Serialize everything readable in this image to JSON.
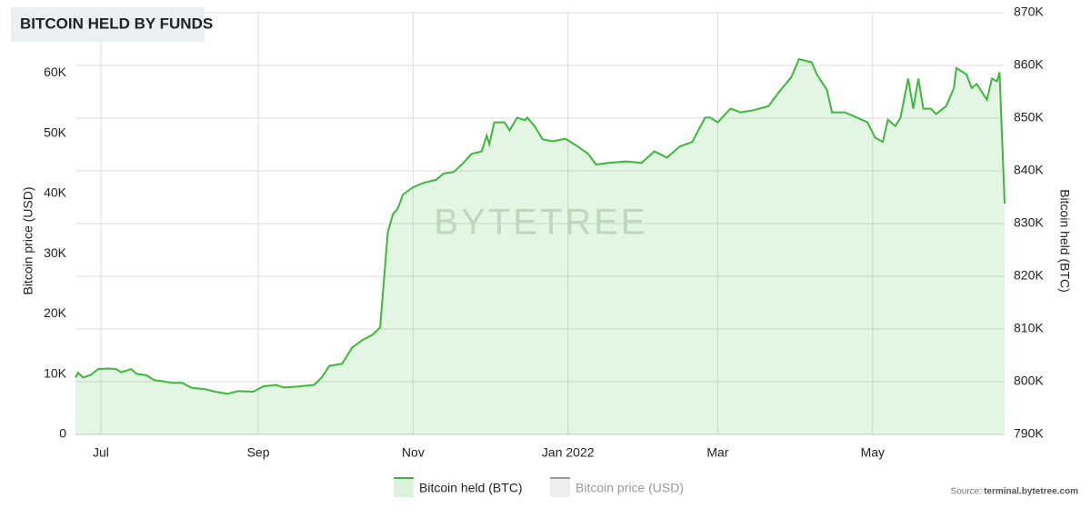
{
  "chart_data": {
    "type": "line",
    "title": "BITCOIN HELD BY FUNDS",
    "watermark": "BYTETREE",
    "source_label": "Source:",
    "source": "terminal.bytetree.com",
    "ylabel": "Bitcoin price (USD)",
    "y2label": "Bitcoin held (BTC)",
    "x": [
      -10,
      -9,
      -7,
      -4,
      -1,
      3,
      6,
      8,
      12,
      14,
      18,
      21,
      24,
      28,
      32,
      36,
      41,
      45,
      50,
      54,
      60,
      64,
      69,
      72,
      78,
      84,
      87,
      90,
      95,
      99,
      103,
      107,
      110,
      113,
      115,
      117,
      119,
      123,
      127,
      132,
      135,
      139,
      143,
      146,
      150,
      152,
      153,
      155,
      159,
      161,
      164,
      167,
      168,
      171,
      174,
      178,
      183,
      187,
      192,
      195,
      200,
      207,
      213,
      218,
      223,
      228,
      233,
      238,
      240,
      243,
      248,
      252,
      257,
      263,
      267,
      272,
      275,
      280,
      282,
      286,
      288,
      293,
      297,
      302,
      305,
      308,
      310,
      313,
      315,
      318,
      320,
      322,
      324,
      327,
      329,
      333,
      336,
      337,
      341,
      343,
      345,
      349,
      351,
      353,
      354,
      356
    ],
    "xlim": [
      -10,
      356
    ],
    "xticks": [
      {
        "value": 0,
        "label": "Jul"
      },
      {
        "value": 62,
        "label": "Sep"
      },
      {
        "value": 123,
        "label": "Nov"
      },
      {
        "value": 184,
        "label": "Jan 2022"
      },
      {
        "value": 243,
        "label": "Mar"
      },
      {
        "value": 304,
        "label": "May"
      }
    ],
    "ylim": [
      0,
      70000
    ],
    "yticks": [
      0,
      {
        "value": 10000,
        "label": "10K"
      },
      {
        "value": 20000,
        "label": "20K"
      },
      {
        "value": 30000,
        "label": "30K"
      },
      {
        "value": 40000,
        "label": "40K"
      },
      {
        "value": 50000,
        "label": "50K"
      },
      {
        "value": 60000,
        "label": "60K"
      }
    ],
    "y2lim": [
      790000,
      870000
    ],
    "y2ticks": [
      {
        "value": 790000,
        "label": "790K"
      },
      {
        "value": 800000,
        "label": "800K"
      },
      {
        "value": 810000,
        "label": "810K"
      },
      {
        "value": 820000,
        "label": "820K"
      },
      {
        "value": 830000,
        "label": "830K"
      },
      {
        "value": 840000,
        "label": "840K"
      },
      {
        "value": 850000,
        "label": "850K"
      },
      {
        "value": 860000,
        "label": "860K"
      },
      {
        "value": 870000,
        "label": "870K"
      }
    ],
    "grid": true,
    "legend": "bottom",
    "series": [
      {
        "name": "Bitcoin held (BTC)",
        "color": "#3cb83c",
        "axis": "y2",
        "visible": true,
        "values": [
          800800,
          801700,
          800800,
          801300,
          802400,
          802500,
          802400,
          801800,
          802400,
          801500,
          801200,
          800300,
          800100,
          799800,
          799800,
          798800,
          798600,
          798100,
          797700,
          798200,
          798100,
          799100,
          799400,
          798900,
          799100,
          799400,
          800800,
          803000,
          803400,
          806500,
          807900,
          808900,
          810300,
          828300,
          831700,
          832900,
          835500,
          836900,
          837700,
          838300,
          839500,
          839800,
          841600,
          843200,
          843700,
          846700,
          845100,
          849200,
          849200,
          847700,
          850100,
          849600,
          850100,
          848400,
          846000,
          845600,
          846100,
          844900,
          843200,
          841200,
          841500,
          841800,
          841500,
          843700,
          842500,
          844600,
          845500,
          850100,
          850100,
          849200,
          851800,
          851100,
          851500,
          852300,
          854900,
          857800,
          861200,
          860600,
          858300,
          855400,
          851100,
          851100,
          850300,
          849200,
          846300,
          845500,
          849700,
          848500,
          850100,
          857500,
          851800,
          857500,
          851800,
          851800,
          850800,
          852300,
          855700,
          859500,
          858300,
          855700,
          856500,
          853500,
          857500,
          857000,
          858700,
          833800
        ]
      },
      {
        "name": "Bitcoin price (USD)",
        "color": "#999999",
        "visible": false
      }
    ]
  }
}
